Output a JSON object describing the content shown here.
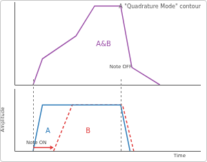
{
  "chart_data": [
    {
      "type": "line",
      "title": "A \"Quadrature Mode\" contour",
      "xlim": [
        0,
        100
      ],
      "xticks": [],
      "ylim": [
        0,
        105
      ],
      "yticks": [],
      "tick_labels": false,
      "grid": false,
      "series": [
        {
          "name": "A&B",
          "color": "#9b4fa8",
          "line_style": "solid",
          "x": [
            10,
            15,
            33,
            43,
            57,
            63,
            78
          ],
          "values": [
            0,
            33,
            62,
            100,
            100,
            22,
            0
          ]
        }
      ]
    },
    {
      "type": "line",
      "x_label": "Time",
      "y_label": "Amplitude",
      "xlim": [
        0,
        100
      ],
      "xticks": [],
      "ylim": [
        0,
        135
      ],
      "yticks": [],
      "tick_labels": false,
      "grid": false,
      "series": [
        {
          "name": "A",
          "color": "#2a7ab8",
          "line_style": "solid",
          "x": [
            10,
            15,
            57,
            62
          ],
          "values": [
            0,
            100,
            100,
            0
          ]
        },
        {
          "name": "B",
          "color": "#e03a3a",
          "line_style": "dashed",
          "x": [
            21,
            31,
            58,
            64
          ],
          "values": [
            0,
            100,
            100,
            0
          ]
        }
      ],
      "annotations": [
        {
          "x": 10,
          "text": "Note ON"
        },
        {
          "x": 57,
          "text": "Note OFF"
        }
      ]
    }
  ]
}
